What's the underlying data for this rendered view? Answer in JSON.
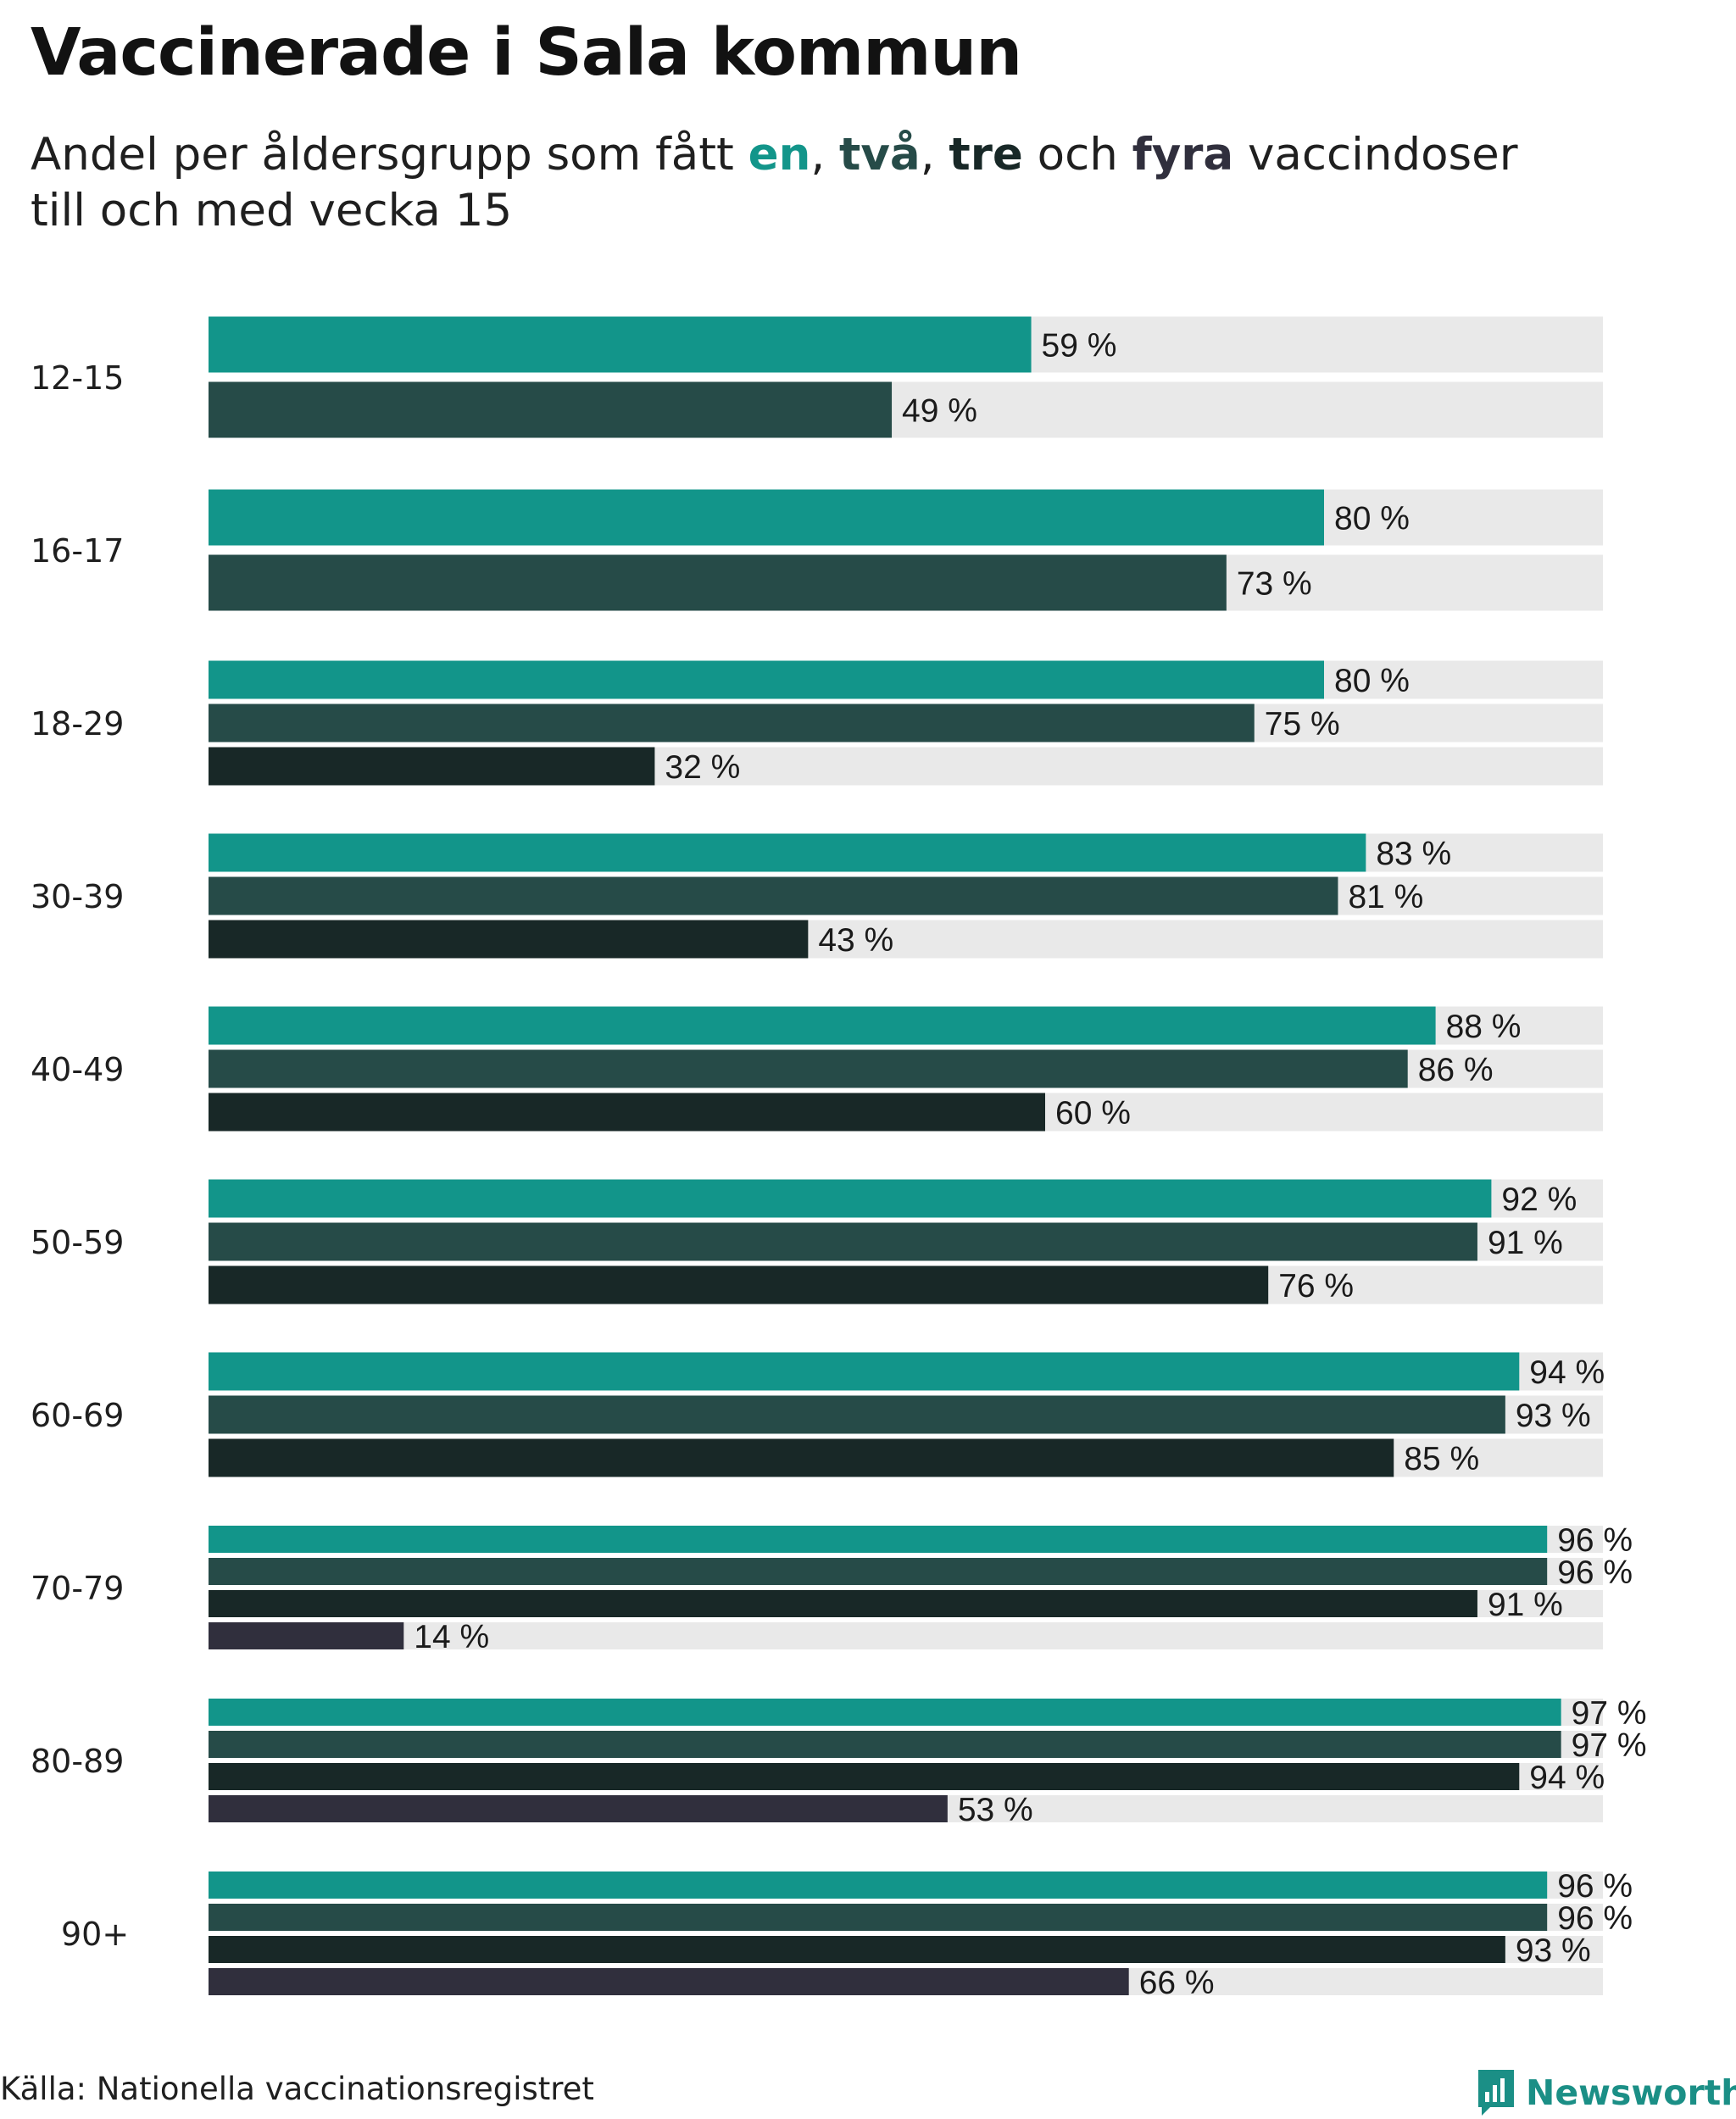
{
  "header": {
    "title": "Vaccinerade i Sala kommun",
    "subtitle_prefix": "Andel per åldersgrupp som fått ",
    "subtitle_en": "en",
    "subtitle_sep1": ", ",
    "subtitle_tva": "två",
    "subtitle_sep2": ", ",
    "subtitle_tre": "tre",
    "subtitle_och": " och ",
    "subtitle_fyra": "fyra",
    "subtitle_suffix": " vaccindoser",
    "subtitle_line2": "till och med vecka 15"
  },
  "footer": {
    "source": "Källa: Nationella vaccinationsregistret",
    "logo_text": "Newsworthy"
  },
  "colors": {
    "en": "#12958a",
    "tva": "#264b48",
    "tre": "#182827",
    "fyra": "#302f3d",
    "track": "#e9e9e9",
    "logo": "#1b8f86"
  },
  "chart_data": {
    "type": "bar",
    "orientation": "horizontal",
    "title": "Vaccinerade i Sala kommun",
    "subtitle": "Andel per åldersgrupp som fått en, två, tre och fyra vaccindoser till och med vecka 15",
    "unit": "%",
    "xlim": [
      0,
      100
    ],
    "categories": [
      "12-15",
      "16-17",
      "18-29",
      "30-39",
      "40-49",
      "50-59",
      "60-69",
      "70-79",
      "80-89",
      "90+"
    ],
    "series": [
      {
        "name": "en",
        "color": "#12958a",
        "values": [
          59,
          80,
          80,
          83,
          88,
          92,
          94,
          96,
          97,
          96
        ]
      },
      {
        "name": "två",
        "color": "#264b48",
        "values": [
          49,
          73,
          75,
          81,
          86,
          91,
          93,
          96,
          97,
          96
        ]
      },
      {
        "name": "tre",
        "color": "#182827",
        "values": [
          null,
          null,
          32,
          43,
          60,
          76,
          85,
          91,
          94,
          93
        ]
      },
      {
        "name": "fyra",
        "color": "#302f3d",
        "values": [
          null,
          null,
          null,
          null,
          null,
          null,
          null,
          14,
          53,
          66
        ]
      }
    ],
    "value_labels": [
      [
        "59 %",
        "49 %"
      ],
      [
        "80 %",
        "73 %"
      ],
      [
        "80 %",
        "75 %",
        "32 %"
      ],
      [
        "83 %",
        "81 %",
        "43 %"
      ],
      [
        "88 %",
        "86 %",
        "60 %"
      ],
      [
        "92 %",
        "91 %",
        "76 %"
      ],
      [
        "94 %",
        "93 %",
        "85 %"
      ],
      [
        "96 %",
        "96 %",
        "91 %",
        "14 %"
      ],
      [
        "97 %",
        "97 %",
        "94 %",
        "53 %"
      ],
      [
        "96 %",
        "96 %",
        "93 %",
        "66 %"
      ]
    ],
    "legend": "inline in subtitle"
  }
}
